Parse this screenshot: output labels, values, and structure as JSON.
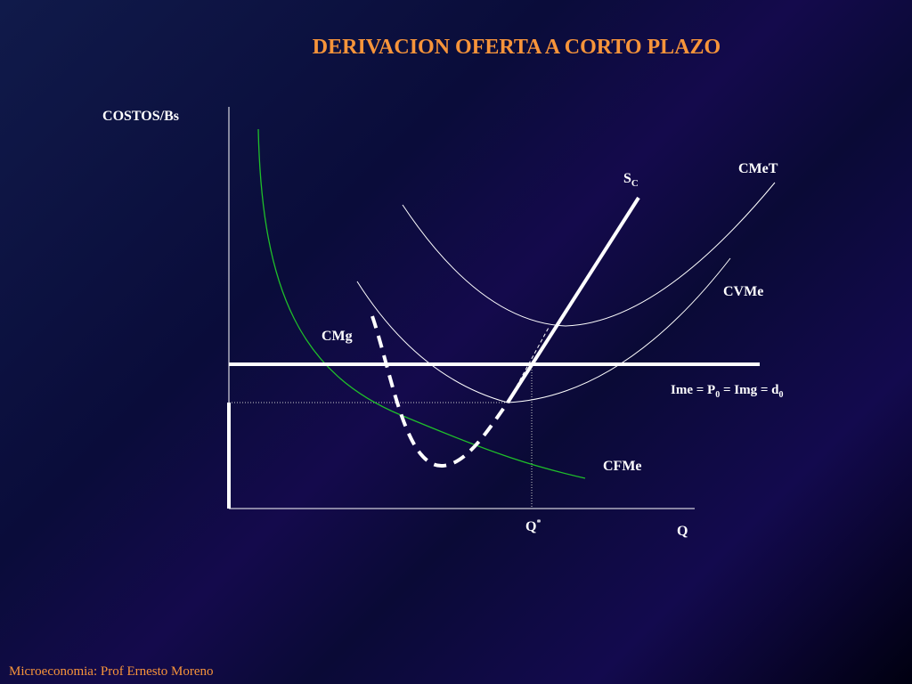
{
  "title": "DERIVACION OFERTA A CORTO PLAZO",
  "axes": {
    "y_label": "COSTOS/Bs",
    "x_label": "Q",
    "x_mark": [
      "Q",
      "*"
    ]
  },
  "curves": {
    "supply": [
      "S",
      "C"
    ],
    "cmet": "CMeT",
    "cvme": "CVMe",
    "cmg": "CMg",
    "price": [
      "Ime = P",
      "0",
      " = Img = d",
      "0"
    ],
    "cfme": "CFMe"
  },
  "footer": "Microeconomia: Prof Ernesto Moreno"
}
